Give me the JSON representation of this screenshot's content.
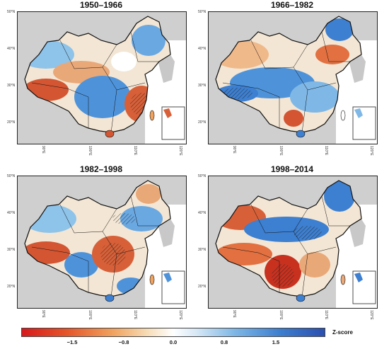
{
  "panels": [
    {
      "title": "1950–1966",
      "lat_labels": [
        "50°N",
        "40°N",
        "30°N",
        "20°N"
      ],
      "lon_labels": [
        "90°E",
        "100°E",
        "110°E",
        "120°E"
      ]
    },
    {
      "title": "1966–1982",
      "lat_labels": [
        "50°N",
        "40°N",
        "30°N",
        "20°N"
      ],
      "lon_labels": [
        "90°E",
        "100°E",
        "110°E",
        "120°E"
      ]
    },
    {
      "title": "1982–1998",
      "lat_labels": [
        "50°N",
        "40°N",
        "30°N",
        "20°N"
      ],
      "lon_labels": [
        "90°E",
        "100°E",
        "110°E",
        "120°E"
      ]
    },
    {
      "title": "1998–2014",
      "lat_labels": [
        "50°N",
        "40°N",
        "30°N",
        "20°N"
      ],
      "lon_labels": [
        "90°E",
        "100°E",
        "110°E",
        "120°E"
      ]
    }
  ],
  "legend": {
    "label": "Z-score",
    "ticks": [
      "−1.5",
      "−0.8",
      "0.0",
      "0.8",
      "1.5"
    ],
    "colors": {
      "low": "#d7191c",
      "mid": "#ffffff",
      "high": "#2b4fb0"
    }
  },
  "colors": {
    "land_outside": "#cfcfcf",
    "sea": "#ffffff",
    "border": "#111111"
  }
}
